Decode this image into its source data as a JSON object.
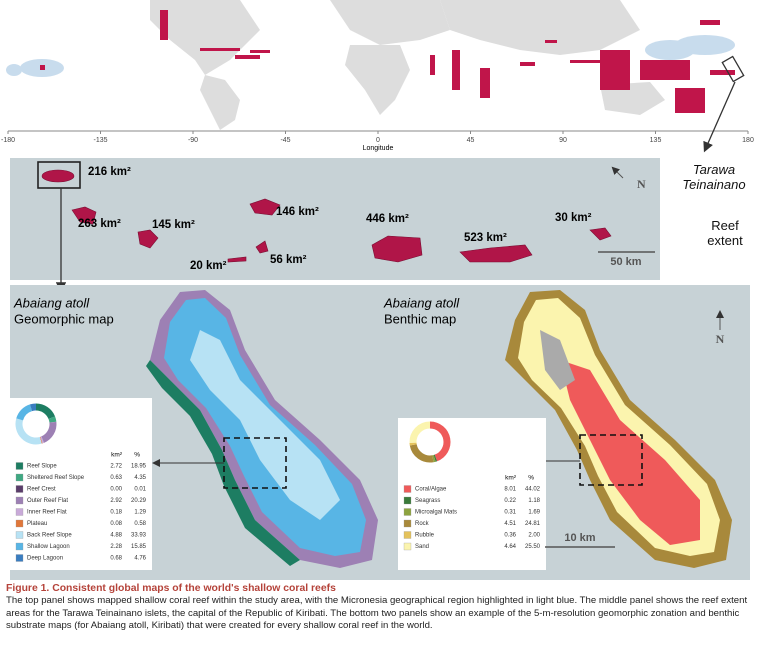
{
  "world_map": {
    "xlim": [
      -180,
      180
    ],
    "lon_ticks": [
      -180,
      -135,
      -90,
      -45,
      0,
      45,
      90,
      135,
      180
    ],
    "x_label": "Longitude"
  },
  "callout": {
    "site": "Tarawa Teinainano",
    "label": "Reef extent"
  },
  "reef_extent_panel": {
    "areas": [
      "216 km²",
      "263 km²",
      "145 km²",
      "146 km²",
      "446 km²",
      "523 km²",
      "30 km²",
      "20 km²",
      "56 km²"
    ],
    "north": "N",
    "scale_bar": "50 km"
  },
  "geomorphic_panel": {
    "site": "Abaiang atoll",
    "title": "Geomorphic map",
    "area_header": "km²",
    "percent_header": "%",
    "classes": [
      {
        "name": "Reef Slope",
        "color": "#1d7d62",
        "area": "2.72",
        "percent": 18.95
      },
      {
        "name": "Sheltered Reef Slope",
        "color": "#3fa882",
        "area": "0.63",
        "percent": 4.35
      },
      {
        "name": "Reef Crest",
        "color": "#5a3d6a",
        "area": "0.00",
        "percent": 0.01
      },
      {
        "name": "Outer Reef Flat",
        "color": "#9d80b4",
        "area": "2.92",
        "percent": 20.29
      },
      {
        "name": "Inner Reef Flat",
        "color": "#c9aad9",
        "area": "0.18",
        "percent": 1.29
      },
      {
        "name": "Plateau",
        "color": "#e0773a",
        "area": "0.08",
        "percent": 0.58
      },
      {
        "name": "Back Reef Slope",
        "color": "#b7e2f4",
        "area": "4.88",
        "percent": 33.93
      },
      {
        "name": "Shallow Lagoon",
        "color": "#58b5e5",
        "area": "2.28",
        "percent": 15.85
      },
      {
        "name": "Deep Lagoon",
        "color": "#3a7dc0",
        "area": "0.68",
        "percent": 4.76
      }
    ]
  },
  "benthic_panel": {
    "site": "Abaiang atoll",
    "title": "Benthic map",
    "area_header": "km²",
    "percent_header": "%",
    "north": "N",
    "scale_bar": "10 km",
    "classes": [
      {
        "name": "Coral/Algae",
        "color": "#ef5a5a",
        "area": "8.01",
        "percent": 44.02
      },
      {
        "name": "Seagrass",
        "color": "#3a7a3a",
        "area": "0.22",
        "percent": 1.18
      },
      {
        "name": "Microalgal Mats",
        "color": "#8da33f",
        "area": "0.31",
        "percent": 1.69
      },
      {
        "name": "Rock",
        "color": "#a8893b",
        "area": "4.51",
        "percent": 24.81
      },
      {
        "name": "Rubble",
        "color": "#e4c25b",
        "area": "0.36",
        "percent": {
          "value": 2,
          "label": "2.00"
        }
      },
      {
        "name": "Sand",
        "color": "#fbf4ae",
        "area": "4.64",
        "percent": {
          "value": 25.5,
          "label": "25.50"
        }
      }
    ]
  },
  "caption": {
    "title": "Figure 1. Consistent global maps of the world's shallow coral reefs",
    "body": "The top panel shows mapped shallow coral reef within the study area, with the Micronesia geographical region highlighted in light blue. The middle panel shows the reef extent areas for the Tarawa Teinainano islets, the capital of the Republic of Kiribati. The bottom two panels show an example of the 5-m-resolution geomorphic zonation and benthic substrate maps (for Abaiang atoll, Kiribati) that were created for every shallow coral reef in the world."
  }
}
